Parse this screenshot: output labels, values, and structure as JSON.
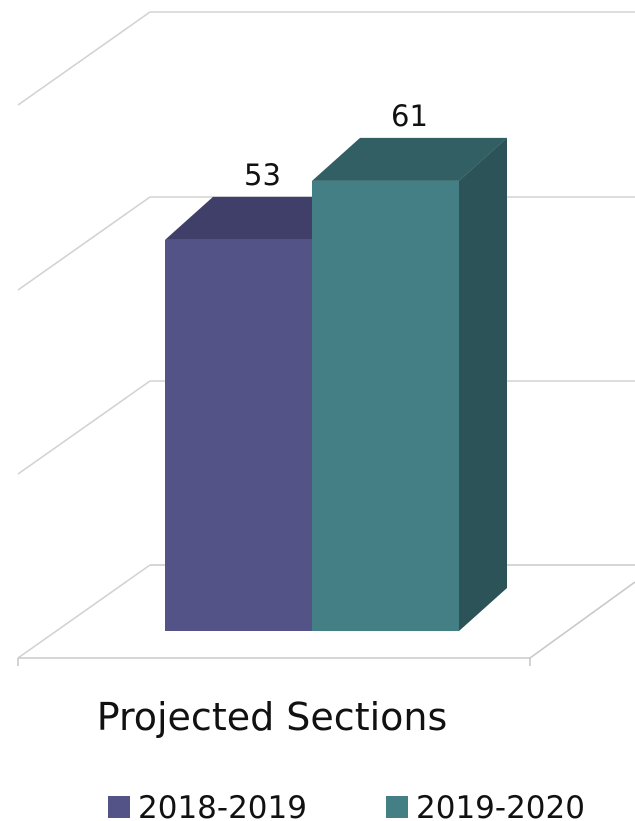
{
  "chart_data": {
    "type": "bar",
    "categories": [
      "Projected Sections"
    ],
    "series": [
      {
        "name": "2018-2019",
        "values": [
          53
        ],
        "color": "#545387",
        "top_color": "#3f3f69"
      },
      {
        "name": "2019-2020",
        "values": [
          61
        ],
        "color": "#437f84",
        "top_color": "#315f63",
        "side_color": "#2c5358"
      }
    ],
    "ylim": [
      0,
      60
    ],
    "y_gridlines": [
      0,
      20,
      40,
      60
    ],
    "grid": true,
    "three_d": true,
    "data_labels": true,
    "legend_position": "bottom"
  }
}
